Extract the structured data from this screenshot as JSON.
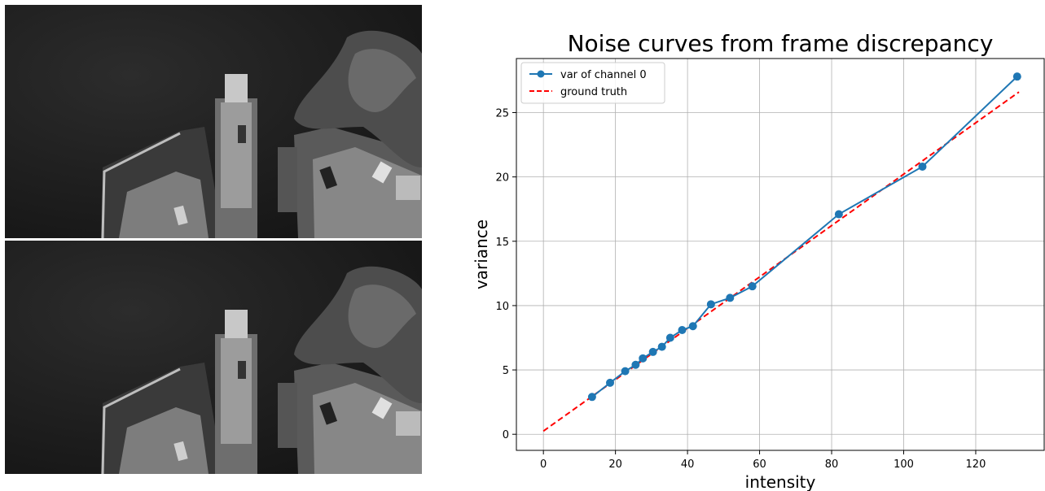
{
  "chart_data": {
    "type": "line",
    "title": "Noise curves from frame discrepancy",
    "xlabel": "intensity",
    "ylabel": "variance",
    "xlim": [
      -7.5,
      139
    ],
    "ylim": [
      -1.25,
      29.2
    ],
    "xticks": [
      0,
      20,
      40,
      60,
      80,
      100,
      120
    ],
    "yticks": [
      0,
      5,
      10,
      15,
      20,
      25
    ],
    "grid": true,
    "legend_position": "top-left",
    "series": [
      {
        "name": "var of channel 0",
        "color": "#1f77b4",
        "style": "solid-with-circle-markers",
        "x": [
          13.5,
          18.5,
          22.7,
          25.6,
          27.6,
          30.4,
          32.9,
          35.2,
          38.5,
          41.5,
          46.5,
          51.8,
          58.0,
          82.0,
          105.2,
          131.5
        ],
        "y": [
          2.9,
          4.0,
          4.9,
          5.4,
          5.9,
          6.4,
          6.8,
          7.5,
          8.1,
          8.4,
          10.1,
          10.6,
          11.5,
          17.1,
          20.8,
          27.8
        ]
      },
      {
        "name": "ground truth",
        "color": "#ff0000",
        "style": "dashed",
        "x": [
          0,
          132
        ],
        "y": [
          0.25,
          26.6
        ]
      }
    ]
  },
  "images": {
    "top": {
      "icon": "aerial-ferry-dock-photo"
    },
    "bottom": {
      "icon": "aerial-ferry-dock-photo"
    }
  }
}
